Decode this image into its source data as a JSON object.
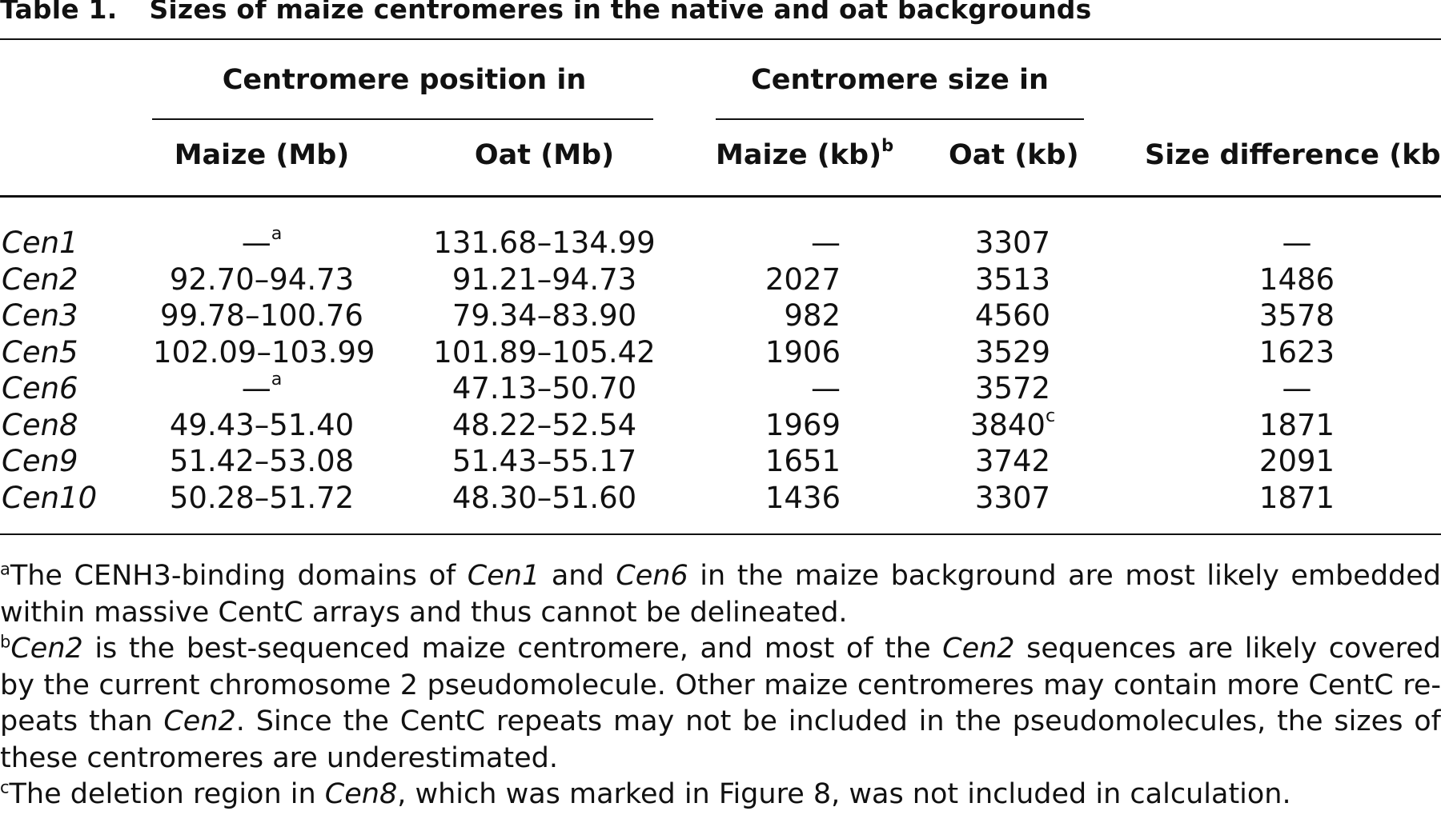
{
  "table": {
    "label": "Table 1.",
    "caption": "Sizes of maize centromeres in the native and oat backgrounds",
    "group_headers": {
      "position": "Centromere position in",
      "size": "Centromere size in"
    },
    "columns": {
      "maize_pos": "Maize (Mb)",
      "oat_pos": "Oat (Mb)",
      "maize_size": "Maize (kb)",
      "maize_size_note": "b",
      "oat_size": "Oat (kb)",
      "size_diff": "Size difference (kb)"
    },
    "rows": [
      {
        "name": "Cen1",
        "maize_pos": "—",
        "maize_pos_note": "a",
        "oat_pos": "131.68–134.99",
        "maize_size": "—",
        "oat_size": "3307",
        "oat_size_note": "",
        "diff": "—"
      },
      {
        "name": "Cen2",
        "maize_pos": "92.70–94.73",
        "maize_pos_note": "",
        "oat_pos": "91.21–94.73",
        "maize_size": "2027",
        "oat_size": "3513",
        "oat_size_note": "",
        "diff": "1486"
      },
      {
        "name": "Cen3",
        "maize_pos": "99.78–100.76",
        "maize_pos_note": "",
        "oat_pos": "79.34–83.90",
        "maize_size": "982",
        "oat_size": "4560",
        "oat_size_note": "",
        "diff": "3578"
      },
      {
        "name": "Cen5",
        "maize_pos": "102.09–103.99",
        "maize_pos_note": "",
        "oat_pos": "101.89–105.42",
        "maize_size": "1906",
        "oat_size": "3529",
        "oat_size_note": "",
        "diff": "1623"
      },
      {
        "name": "Cen6",
        "maize_pos": "—",
        "maize_pos_note": "a",
        "oat_pos": "47.13–50.70",
        "maize_size": "—",
        "oat_size": "3572",
        "oat_size_note": "",
        "diff": "—"
      },
      {
        "name": "Cen8",
        "maize_pos": "49.43–51.40",
        "maize_pos_note": "",
        "oat_pos": "48.22–52.54",
        "maize_size": "1969",
        "oat_size": "3840",
        "oat_size_note": "c",
        "diff": "1871"
      },
      {
        "name": "Cen9",
        "maize_pos": "51.42–53.08",
        "maize_pos_note": "",
        "oat_pos": "51.43–55.17",
        "maize_size": "1651",
        "oat_size": "3742",
        "oat_size_note": "",
        "diff": "2091"
      },
      {
        "name": "Cen10",
        "maize_pos": "50.28–51.72",
        "maize_pos_note": "",
        "oat_pos": "48.30–51.60",
        "maize_size": "1436",
        "oat_size": "3307",
        "oat_size_note": "",
        "diff": "1871"
      }
    ],
    "footnotes": {
      "a": {
        "mark": "a",
        "t1": "The CENH3-binding domains of ",
        "i1": "Cen1",
        "t2": " and ",
        "i2": "Cen6",
        "t3": " in the maize background are most likely embedded within massive CentC arrays and thus cannot be delineated."
      },
      "b": {
        "mark": "b",
        "i1": "Cen2",
        "t1": " is the best-sequenced maize centromere, and most of the ",
        "i2": "Cen2",
        "t2": " sequences are likely covered by the current chromosome 2 pseudomolecule. Other maize centromeres may contain more CentC re-peats than ",
        "i3": "Cen2",
        "t3": ". Since the CentC repeats may not be included in the pseudomolecules, the sizes of these centromeres are underestimated."
      },
      "c": {
        "mark": "c",
        "t1": "The deletion region in ",
        "i1": "Cen8",
        "t2": ", which was marked in Figure 8, was not included in calculation."
      }
    }
  }
}
